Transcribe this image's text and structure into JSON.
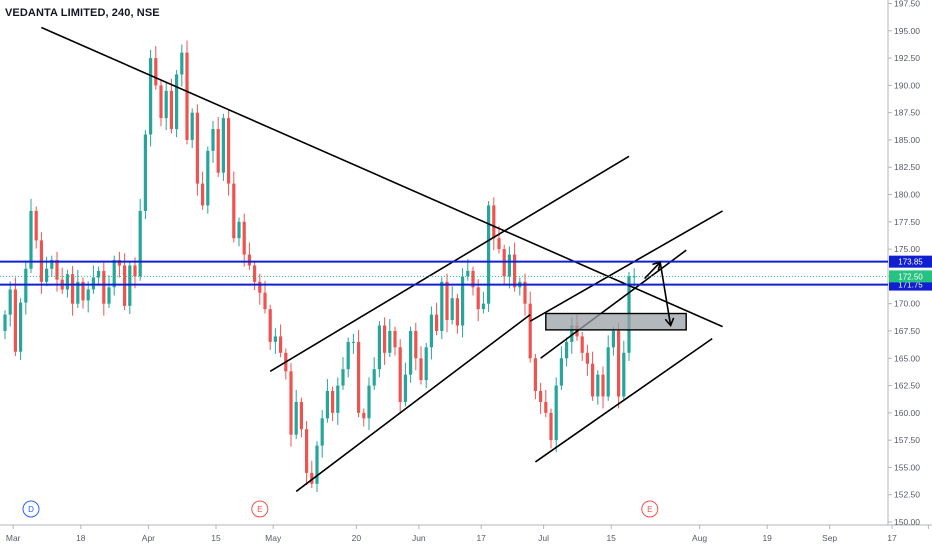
{
  "chart_data": {
    "type": "candlestick",
    "title": "VEDANTA LIMITED, 240, NSE",
    "ylim": [
      150,
      197.5
    ],
    "y_ticks": [
      "197.50",
      "195.00",
      "192.50",
      "190.00",
      "187.50",
      "185.00",
      "182.50",
      "180.00",
      "177.50",
      "175.00",
      "172.50",
      "170.00",
      "167.50",
      "165.00",
      "162.50",
      "160.00",
      "157.50",
      "155.00",
      "152.50",
      "150.00"
    ],
    "x_ticks": [
      {
        "label": "Mar",
        "bar": 1
      },
      {
        "label": "18",
        "bar": 14
      },
      {
        "label": "Apr",
        "bar": 27
      },
      {
        "label": "15",
        "bar": 40
      },
      {
        "label": "May",
        "bar": 51
      },
      {
        "label": "20",
        "bar": 67
      },
      {
        "label": "Jun",
        "bar": 79
      },
      {
        "label": "17",
        "bar": 91
      },
      {
        "label": "Jul",
        "bar": 103
      },
      {
        "label": "15",
        "bar": 116
      },
      {
        "label": "Aug",
        "bar": 133
      },
      {
        "label": "19",
        "bar": 146
      },
      {
        "label": "Sep",
        "bar": 158
      },
      {
        "label": "17",
        "bar": 170
      },
      {
        "label": "",
        "bar": 177
      }
    ],
    "up_color": "#26a69a",
    "down_color": "#ef5350",
    "candles_close": [
      169.0,
      171.3,
      165.6,
      170.1,
      173.2,
      178.5,
      175.8,
      172.0,
      173.2,
      174.0,
      172.2,
      171.3,
      172.7,
      170.0,
      172.0,
      170.3,
      171.3,
      172.4,
      173.0,
      170.0,
      171.5,
      174.0,
      173.5,
      169.8,
      173.5,
      172.5,
      178.5,
      185.5,
      192.5,
      190.0,
      187.0,
      189.5,
      186.0,
      191.0,
      193.0,
      185.0,
      187.5,
      181.0,
      179.0,
      184.0,
      186.0,
      182.0,
      187.0,
      181.0,
      176.0,
      177.5,
      174.5,
      173.5,
      172.0,
      171.0,
      169.5,
      166.5,
      167.0,
      165.5,
      163.8,
      158.0,
      161.0,
      158.5,
      154.5,
      153.5,
      157.0,
      159.5,
      162.0,
      160.0,
      162.5,
      164.0,
      166.5,
      166.5,
      160.0,
      159.5,
      162.5,
      164.0,
      168.0,
      165.5,
      167.5,
      166.0,
      161.0,
      163.5,
      167.5,
      165.0,
      163.0,
      166.0,
      169.0,
      167.5,
      172.0,
      168.5,
      170.5,
      168.0,
      172.5,
      173.0,
      171.5,
      169.5,
      170.0,
      179.0,
      176.0,
      175.0,
      172.5,
      174.5,
      171.5,
      172.0,
      170.0,
      165.0,
      162.0,
      161.0,
      160.0,
      157.5,
      162.5,
      165.0,
      166.5,
      168.0,
      167.0,
      165.5,
      164.5,
      161.5,
      163.5,
      161.5,
      166.0,
      167.5,
      161.5,
      165.5,
      172.5,
      172.5
    ],
    "horizontal_levels": [
      {
        "value": 173.85,
        "label": "173.85",
        "color": "#1020d0"
      },
      {
        "value": 171.75,
        "label": "171.75",
        "color": "#1020d0"
      },
      {
        "value": 172.5,
        "label": "172.50",
        "color": "#26c281"
      }
    ],
    "trendlines": [
      {
        "from": [
          7,
          195.3
        ],
        "to": [
          138,
          167.9
        ]
      },
      {
        "from": [
          51,
          163.8
        ],
        "to": [
          120,
          183.5
        ]
      },
      {
        "from": [
          56,
          152.8
        ],
        "to": [
          101,
          169.0
        ]
      },
      {
        "from": [
          101,
          168.4
        ],
        "to": [
          138,
          178.5
        ]
      },
      {
        "from": [
          103,
          165.0
        ],
        "to": [
          131,
          174.9
        ]
      },
      {
        "from": [
          102,
          155.5
        ],
        "to": [
          136,
          166.8
        ]
      }
    ],
    "rectangle": {
      "from": [
        104,
        169.1
      ],
      "to": [
        131,
        167.6
      ]
    },
    "arrow": {
      "points": [
        [
          123,
          172.3
        ],
        [
          126,
          173.8
        ],
        [
          128,
          168.0
        ]
      ]
    },
    "events": [
      {
        "label": "D",
        "bar": 5,
        "color": "#2962ff"
      },
      {
        "label": "E",
        "bar": 49,
        "color": "#ef5350"
      },
      {
        "label": "E",
        "bar": 124,
        "color": "#ef5350"
      }
    ]
  }
}
